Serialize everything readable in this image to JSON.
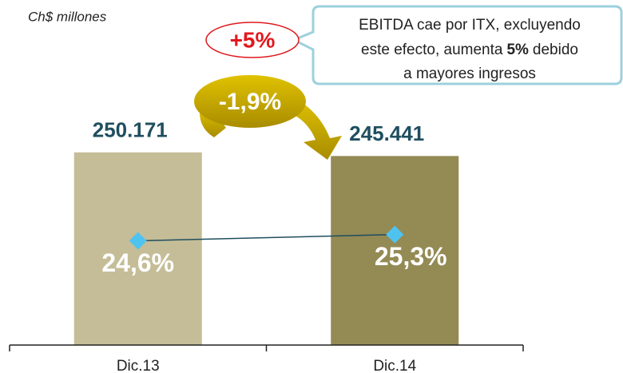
{
  "chart_data": {
    "type": "bar",
    "subtitle": "Ch$ millones",
    "categories": [
      "Dic.13",
      "Dic.14"
    ],
    "series": [
      {
        "values": [
          250171,
          245441
        ],
        "value_labels": [
          "250.171",
          "245.441"
        ],
        "colors": [
          "#c4bd97",
          "#948a54"
        ]
      },
      {
        "values": [
          24.6,
          25.3
        ],
        "value_labels": [
          "24,6%",
          "25,3%"
        ],
        "color": "#1f4e5f",
        "marker_color": "#4fc3f0",
        "axis": "y2"
      }
    ],
    "ylim": [
      0,
      280000
    ],
    "y2lim": [
      13,
      37
    ],
    "annotations": {
      "change": "-1,9%",
      "adjusted": "+5%",
      "callout": [
        "EBITDA cae por ITX, excluyendo",
        "este efecto, aumenta",
        "5%",
        "debido",
        "a mayores ingresos"
      ]
    }
  }
}
